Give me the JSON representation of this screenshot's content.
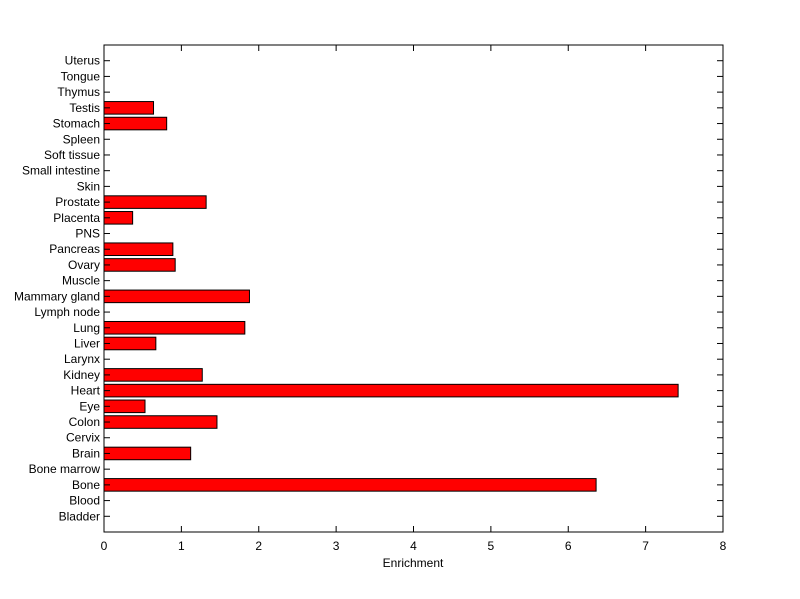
{
  "chart_data": {
    "type": "bar",
    "orientation": "horizontal",
    "categories": [
      "Bladder",
      "Blood",
      "Bone",
      "Bone marrow",
      "Brain",
      "Cervix",
      "Colon",
      "Eye",
      "Heart",
      "Kidney",
      "Larynx",
      "Liver",
      "Lung",
      "Lymph node",
      "Mammary gland",
      "Muscle",
      "Ovary",
      "Pancreas",
      "PNS",
      "Placenta",
      "Prostate",
      "Skin",
      "Small intestine",
      "Soft tissue",
      "Spleen",
      "Stomach",
      "Testis",
      "Thymus",
      "Tongue",
      "Uterus"
    ],
    "values": [
      0,
      0,
      6.36,
      0,
      1.12,
      0,
      1.46,
      0.53,
      7.42,
      1.27,
      0,
      0.67,
      1.82,
      0,
      1.88,
      0,
      0.92,
      0.89,
      0,
      0.37,
      1.32,
      0,
      0,
      0,
      0,
      0.81,
      0.64,
      0,
      0,
      0
    ],
    "title": "",
    "xlabel": "Enrichment",
    "ylabel": "",
    "xlim": [
      0,
      8
    ],
    "xticks": [
      0,
      1,
      2,
      3,
      4,
      5,
      6,
      7,
      8
    ],
    "grid": false,
    "bar_color": "#ff0000",
    "edge_color": "#000000"
  }
}
